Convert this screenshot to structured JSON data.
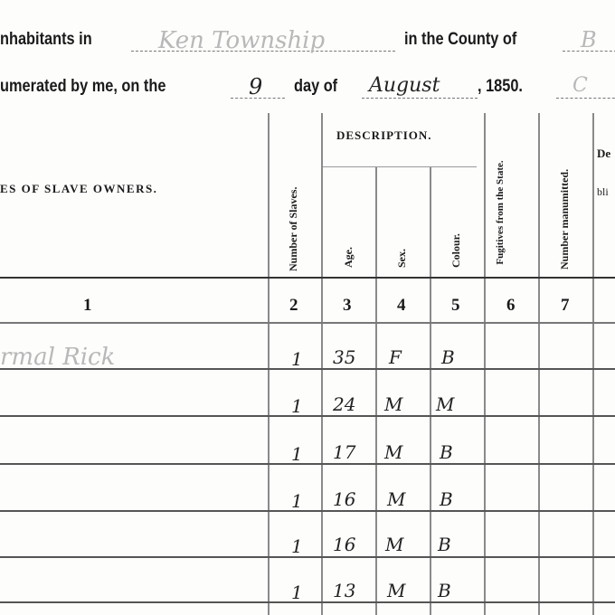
{
  "heading": {
    "line1_prefix": "nhabitants in",
    "township": "Ken Township",
    "line1_mid": "in the County of",
    "county": "B",
    "line2_prefix": "umerated by me, on the",
    "day": "9",
    "line2_mid": "day of",
    "month": "August",
    "line2_year": ", 1850.",
    "signature_fragment": "C"
  },
  "columns": {
    "owners": "ES OF SLAVE OWNERS.",
    "number_of_slaves": "Number of Slaves.",
    "description": "DESCRIPTION.",
    "age": "Age.",
    "sex": "Sex.",
    "colour": "Colour.",
    "fugitives": "Fugitives from the State.",
    "manumitted": "Number manumitted.",
    "deaf_fragment": "De",
    "blind_fragment": "bli",
    "numbers": [
      "1",
      "2",
      "3",
      "4",
      "5",
      "6",
      "7"
    ]
  },
  "rows": [
    {
      "owner": "rmal Rick",
      "count": "1",
      "age": "35",
      "sex": "F",
      "colour": "B"
    },
    {
      "owner": "",
      "count": "1",
      "age": "24",
      "sex": "M",
      "colour": "M"
    },
    {
      "owner": "",
      "count": "1",
      "age": "17",
      "sex": "M",
      "colour": "B"
    },
    {
      "owner": "",
      "count": "1",
      "age": "16",
      "sex": "M",
      "colour": "B"
    },
    {
      "owner": "",
      "count": "1",
      "age": "16",
      "sex": "M",
      "colour": "B"
    },
    {
      "owner": "",
      "count": "1",
      "age": "13",
      "sex": "M",
      "colour": "B"
    }
  ]
}
